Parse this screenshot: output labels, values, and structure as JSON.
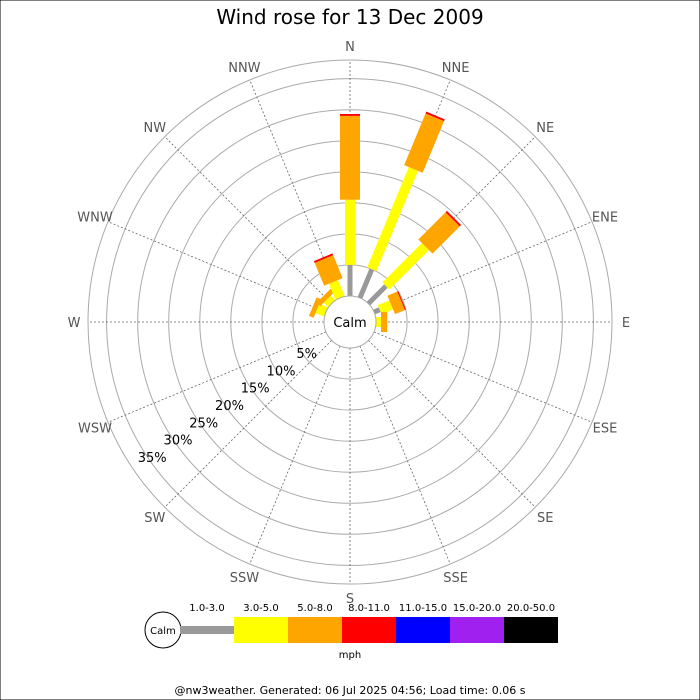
{
  "chart_data": {
    "type": "wind-rose",
    "title": "Wind rose for 13 Dec 2009",
    "calm_label": "Calm",
    "directions": [
      "N",
      "NNE",
      "NE",
      "ENE",
      "E",
      "ESE",
      "SE",
      "SSE",
      "S",
      "SSW",
      "SW",
      "WSW",
      "W",
      "WNW",
      "NW",
      "NNW"
    ],
    "ring_labels": [
      "5%",
      "10%",
      "15%",
      "20%",
      "25%",
      "30%",
      "35%"
    ],
    "rmax": 38,
    "speed_bins": [
      {
        "label": "1.0-3.0",
        "color": "#999999"
      },
      {
        "label": "3.0-5.0",
        "color": "#ffff00"
      },
      {
        "label": "5.0-8.0",
        "color": "#ffa500"
      },
      {
        "label": "8.0-11.0",
        "color": "#ff0000"
      },
      {
        "label": "11.0-15.0",
        "color": "#0000ff"
      },
      {
        "label": "15.0-20.0",
        "color": "#a020f0"
      },
      {
        "label": "20.0-50.0",
        "color": "#000000"
      }
    ],
    "frequencies": {
      "N": [
        5.0,
        10.5,
        13.5,
        0.3,
        0,
        0,
        0
      ],
      "NNE": [
        5.0,
        17.5,
        9.0,
        0.3,
        0,
        0,
        0
      ],
      "NE": [
        4.0,
        9.0,
        6.2,
        0.3,
        0,
        0,
        0
      ],
      "ENE": [
        1.0,
        2.0,
        1.8,
        0.1,
        0,
        0,
        0
      ],
      "E": [
        0.0,
        0.8,
        1.0,
        0,
        0,
        0,
        0
      ],
      "ESE": [
        0,
        0,
        0,
        0,
        0,
        0,
        0
      ],
      "SE": [
        0,
        0,
        0,
        0,
        0,
        0,
        0
      ],
      "SSE": [
        0,
        0,
        0,
        0,
        0,
        0,
        0
      ],
      "S": [
        0,
        0,
        0,
        0,
        0,
        0,
        0
      ],
      "SSW": [
        0,
        0,
        0,
        0,
        0,
        0,
        0
      ],
      "SW": [
        0,
        0,
        0,
        0,
        0,
        0,
        0
      ],
      "WSW": [
        0,
        0,
        0,
        0,
        0,
        0,
        0
      ],
      "W": [
        0,
        0,
        0,
        0,
        0,
        0,
        0
      ],
      "WNW": [
        0,
        1.5,
        0.8,
        0,
        0,
        0,
        0
      ],
      "NW": [
        0,
        1.0,
        0.8,
        0,
        0,
        0,
        0
      ],
      "NNW": [
        0,
        2.8,
        4.0,
        0.3,
        0,
        0,
        0
      ]
    },
    "legend": {
      "calm_label": "Calm",
      "unit": "mph"
    }
  },
  "footer": "@nw3weather. Generated: 06 Jul 2025 04:56; Load time: 0.06 s"
}
